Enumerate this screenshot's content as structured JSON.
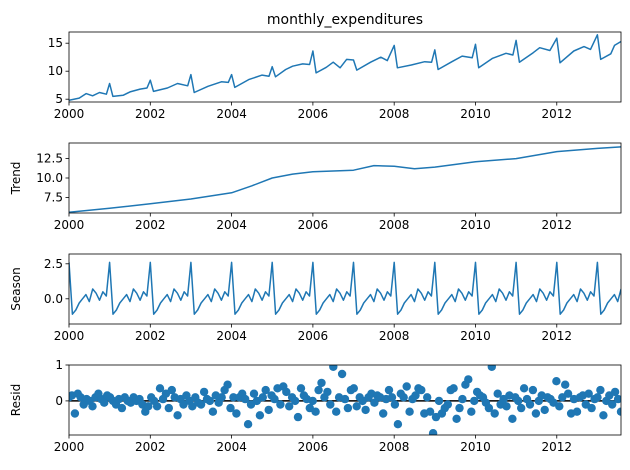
{
  "chart_data": {
    "type": "line",
    "title": "monthly_expenditures",
    "series_color": "#1f77b4",
    "x_tick_labels": [
      "2000",
      "2002",
      "2004",
      "2006",
      "2008",
      "2010",
      "2012"
    ],
    "x_range": [
      2000.0,
      2013.58
    ],
    "panels": [
      {
        "key": "observed",
        "ylabel": "",
        "kind": "line",
        "ylim": [
          4.5,
          17.0
        ],
        "yticks": [
          5,
          10,
          15
        ],
        "ytick_labels": [
          "5",
          "10",
          "15"
        ],
        "points": [
          [
            2000.0,
            4.8
          ],
          [
            2000.25,
            5.2
          ],
          [
            2000.42,
            6.0
          ],
          [
            2000.58,
            5.6
          ],
          [
            2000.75,
            6.2
          ],
          [
            2000.92,
            5.9
          ],
          [
            2001.0,
            7.8
          ],
          [
            2001.08,
            5.5
          ],
          [
            2001.33,
            5.7
          ],
          [
            2001.5,
            6.3
          ],
          [
            2001.75,
            6.8
          ],
          [
            2001.92,
            7.0
          ],
          [
            2002.0,
            8.4
          ],
          [
            2002.08,
            6.4
          ],
          [
            2002.42,
            7.0
          ],
          [
            2002.67,
            7.8
          ],
          [
            2002.92,
            7.4
          ],
          [
            2003.0,
            9.4
          ],
          [
            2003.08,
            6.2
          ],
          [
            2003.42,
            7.3
          ],
          [
            2003.75,
            8.1
          ],
          [
            2003.92,
            8.0
          ],
          [
            2004.0,
            9.4
          ],
          [
            2004.08,
            7.1
          ],
          [
            2004.42,
            8.5
          ],
          [
            2004.75,
            9.3
          ],
          [
            2004.92,
            9.1
          ],
          [
            2005.0,
            10.8
          ],
          [
            2005.08,
            9.0
          ],
          [
            2005.33,
            10.3
          ],
          [
            2005.5,
            10.9
          ],
          [
            2005.75,
            11.3
          ],
          [
            2005.92,
            11.2
          ],
          [
            2006.0,
            13.6
          ],
          [
            2006.08,
            9.7
          ],
          [
            2006.33,
            10.7
          ],
          [
            2006.5,
            11.6
          ],
          [
            2006.67,
            10.6
          ],
          [
            2006.83,
            12.1
          ],
          [
            2007.0,
            12.0
          ],
          [
            2007.08,
            10.2
          ],
          [
            2007.42,
            11.6
          ],
          [
            2007.67,
            12.5
          ],
          [
            2007.83,
            11.9
          ],
          [
            2008.0,
            14.6
          ],
          [
            2008.08,
            10.6
          ],
          [
            2008.42,
            11.1
          ],
          [
            2008.75,
            11.7
          ],
          [
            2008.92,
            11.6
          ],
          [
            2009.0,
            13.8
          ],
          [
            2009.08,
            10.3
          ],
          [
            2009.42,
            11.7
          ],
          [
            2009.67,
            12.7
          ],
          [
            2009.92,
            12.4
          ],
          [
            2010.0,
            14.8
          ],
          [
            2010.08,
            10.6
          ],
          [
            2010.42,
            12.3
          ],
          [
            2010.75,
            13.2
          ],
          [
            2010.92,
            12.9
          ],
          [
            2011.0,
            15.5
          ],
          [
            2011.08,
            11.6
          ],
          [
            2011.42,
            13.3
          ],
          [
            2011.58,
            14.2
          ],
          [
            2011.83,
            13.7
          ],
          [
            2012.0,
            15.9
          ],
          [
            2012.08,
            11.5
          ],
          [
            2012.42,
            13.6
          ],
          [
            2012.67,
            14.4
          ],
          [
            2012.83,
            13.9
          ],
          [
            2013.0,
            16.5
          ],
          [
            2013.08,
            12.1
          ],
          [
            2013.33,
            13.1
          ],
          [
            2013.42,
            14.6
          ],
          [
            2013.58,
            15.3
          ]
        ]
      },
      {
        "key": "trend",
        "ylabel": "Trend",
        "kind": "line",
        "ylim": [
          5.5,
          14.5
        ],
        "yticks": [
          7.5,
          10.0,
          12.5
        ],
        "ytick_labels": [
          "7.5",
          "10.0",
          "12.5"
        ],
        "points": [
          [
            2000.0,
            5.6
          ],
          [
            2001.0,
            6.1
          ],
          [
            2002.0,
            6.7
          ],
          [
            2003.0,
            7.3
          ],
          [
            2004.0,
            8.1
          ],
          [
            2004.5,
            9.0
          ],
          [
            2005.0,
            10.0
          ],
          [
            2005.5,
            10.5
          ],
          [
            2006.0,
            10.8
          ],
          [
            2007.0,
            11.0
          ],
          [
            2007.5,
            11.6
          ],
          [
            2008.0,
            11.5
          ],
          [
            2008.5,
            11.2
          ],
          [
            2009.0,
            11.4
          ],
          [
            2010.0,
            12.1
          ],
          [
            2011.0,
            12.5
          ],
          [
            2012.0,
            13.4
          ],
          [
            2013.0,
            13.8
          ],
          [
            2013.58,
            14.0
          ]
        ]
      },
      {
        "key": "season",
        "ylabel": "Season",
        "kind": "line",
        "ylim": [
          -1.8,
          3.2
        ],
        "yticks": [
          0.0,
          2.5
        ],
        "ytick_labels": [
          "0.0",
          "2.5"
        ],
        "pattern": [
          2.6,
          -1.1,
          -0.8,
          -0.3,
          0.0,
          0.3,
          -0.2,
          0.7,
          0.4,
          -0.1,
          0.5,
          0.2
        ]
      },
      {
        "key": "resid",
        "ylabel": "Resid",
        "kind": "scatter",
        "ylim": [
          -0.95,
          1.0
        ],
        "yticks": [
          0,
          1
        ],
        "ytick_labels": [
          "0",
          "1"
        ],
        "baseline": 0,
        "values": [
          0.1,
          0.15,
          -0.35,
          0.2,
          0.1,
          -0.1,
          0.05,
          0.0,
          -0.15,
          0.1,
          0.2,
          0.05,
          -0.05,
          0.15,
          0.1,
          0.0,
          -0.1,
          0.05,
          -0.2,
          0.1,
          0.0,
          -0.05,
          0.1,
          0.0,
          0.05,
          -0.1,
          -0.3,
          -0.15,
          0.1,
          0.0,
          -0.15,
          0.35,
          0.05,
          0.2,
          -0.2,
          0.3,
          0.1,
          -0.4,
          0.05,
          -0.1,
          0.15,
          0.0,
          -0.15,
          0.1,
          -0.05,
          -0.1,
          0.25,
          0.05,
          0.0,
          -0.3,
          0.15,
          -0.05,
          0.1,
          0.3,
          0.45,
          -0.2,
          0.1,
          -0.35,
          0.1,
          0.2,
          0.05,
          -0.65,
          -0.1,
          0.2,
          0.0,
          -0.4,
          0.1,
          0.3,
          -0.25,
          0.15,
          0.05,
          0.35,
          -0.1,
          0.4,
          0.25,
          -0.15,
          0.1,
          0.0,
          -0.45,
          0.35,
          0.15,
          0.05,
          -0.2,
          0.0,
          -0.3,
          0.3,
          0.5,
          0.1,
          0.25,
          -0.1,
          0.95,
          -0.3,
          0.1,
          0.75,
          0.05,
          -0.2,
          0.3,
          0.35,
          -0.15,
          0.1,
          0.0,
          -0.25,
          0.1,
          0.2,
          -0.05,
          0.15,
          0.1,
          -0.35,
          0.05,
          0.3,
          0.1,
          -0.1,
          -0.65,
          0.2,
          0.1,
          0.4,
          -0.3,
          0.05,
          0.15,
          0.35,
          0.3,
          -0.35,
          0.1,
          -0.3,
          -0.9,
          -0.45,
          0.0,
          -0.35,
          -0.2,
          -0.1,
          0.3,
          0.35,
          -0.5,
          -0.2,
          0.05,
          0.45,
          0.6,
          -0.3,
          0.0,
          0.25,
          0.15,
          0.1,
          -0.05,
          -0.2,
          0.95,
          -0.35,
          0.2,
          -0.1,
          0.05,
          -0.15,
          0.15,
          -0.5,
          0.1,
          0.0,
          -0.2,
          0.35,
          0.05,
          -0.1,
          0.3,
          -0.35,
          0.0,
          0.15,
          -0.25,
          0.1,
          0.05,
          -0.05,
          0.55,
          -0.15,
          0.1,
          0.45,
          0.2,
          -0.35,
          0.05,
          -0.3,
          0.1,
          0.15,
          -0.1,
          0.2,
          -0.2,
          0.05,
          0.1,
          0.3,
          -0.4,
          0.0,
          0.15,
          -0.1,
          0.25,
          0.05,
          -0.3
        ]
      }
    ]
  }
}
